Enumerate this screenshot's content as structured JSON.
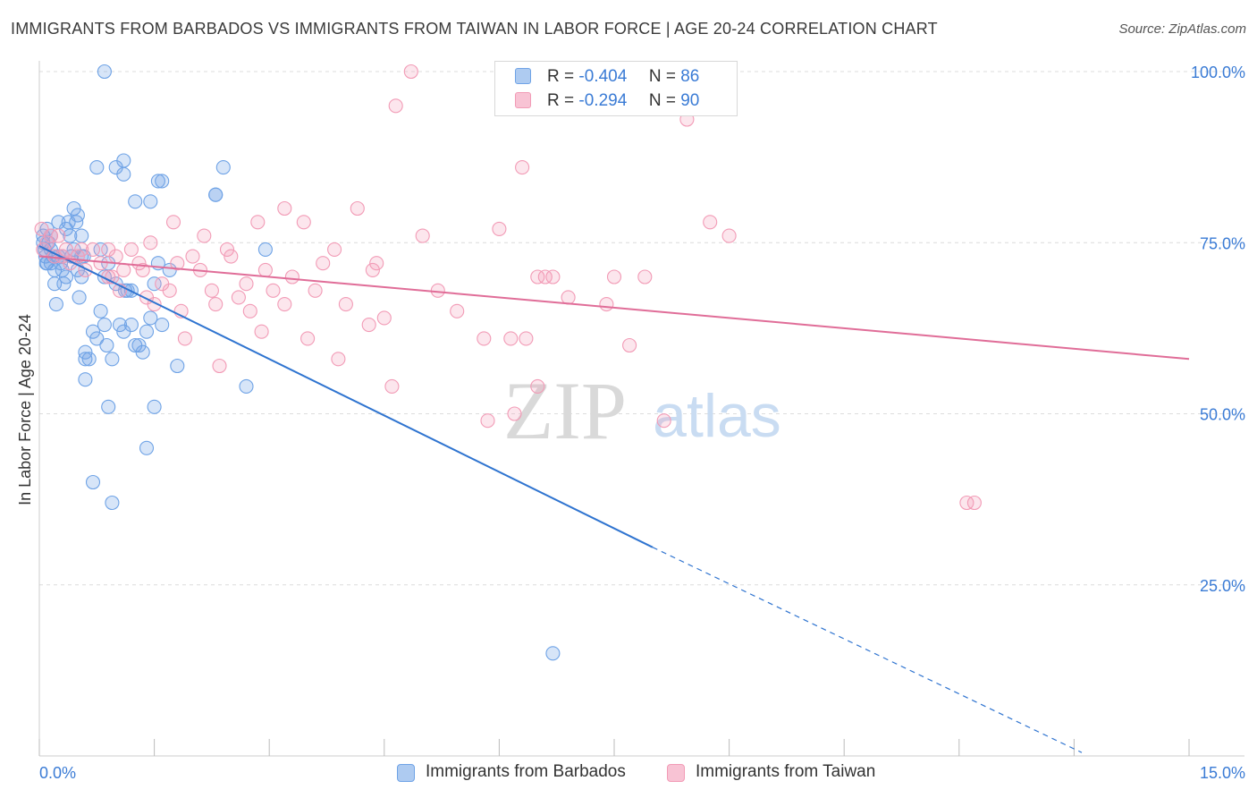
{
  "header": {
    "title": "IMMIGRANTS FROM BARBADOS VS IMMIGRANTS FROM TAIWAN IN LABOR FORCE | AGE 20-24 CORRELATION CHART",
    "source": "Source: ZipAtlas.com"
  },
  "watermark": {
    "zip": "ZIP",
    "atlas": "atlas"
  },
  "legend": {
    "r_label": "R =",
    "n_label": "N =",
    "series": [
      {
        "name": "Immigrants from Barbados",
        "r": "-0.404",
        "n": "86"
      },
      {
        "name": "Immigrants from Taiwan",
        "r": "-0.294",
        "n": "90"
      }
    ]
  },
  "chart_data": {
    "type": "scatter",
    "title": "IMMIGRANTS FROM BARBADOS VS IMMIGRANTS FROM TAIWAN IN LABOR FORCE | AGE 20-24 CORRELATION CHART",
    "xlabel": "",
    "ylabel": "In Labor Force | Age 20-24",
    "xlim": [
      0,
      15
    ],
    "ylim": [
      0,
      100
    ],
    "x_tick_labels": [
      "0.0%",
      "15.0%"
    ],
    "y_tick_labels": [
      "100.0%",
      "75.0%",
      "50.0%",
      "25.0%"
    ],
    "y_ticks": [
      100,
      75,
      50,
      25
    ],
    "grid": true,
    "series": [
      {
        "name": "Immigrants from Barbados",
        "color": "#6fa3e6",
        "line_color": "#2f74d0",
        "points": [
          [
            0.05,
            76
          ],
          [
            0.05,
            75
          ],
          [
            0.07,
            74
          ],
          [
            0.08,
            73
          ],
          [
            0.09,
            72
          ],
          [
            0.1,
            77
          ],
          [
            0.12,
            75
          ],
          [
            0.15,
            74
          ],
          [
            0.15,
            72
          ],
          [
            0.18,
            73
          ],
          [
            0.2,
            71
          ],
          [
            0.2,
            69
          ],
          [
            0.22,
            66
          ],
          [
            0.25,
            78
          ],
          [
            0.25,
            73
          ],
          [
            0.28,
            72
          ],
          [
            0.3,
            71
          ],
          [
            0.32,
            69
          ],
          [
            0.35,
            77
          ],
          [
            0.38,
            78
          ],
          [
            0.4,
            76
          ],
          [
            0.42,
            73
          ],
          [
            0.45,
            80
          ],
          [
            0.45,
            74
          ],
          [
            0.48,
            78
          ],
          [
            0.5,
            71
          ],
          [
            0.52,
            67
          ],
          [
            0.55,
            76
          ],
          [
            0.55,
            70
          ],
          [
            0.58,
            73
          ],
          [
            0.6,
            59
          ],
          [
            0.6,
            58
          ],
          [
            0.65,
            58
          ],
          [
            0.7,
            62
          ],
          [
            0.75,
            61
          ],
          [
            0.8,
            74
          ],
          [
            0.8,
            65
          ],
          [
            0.85,
            63
          ],
          [
            0.88,
            60
          ],
          [
            0.9,
            72
          ],
          [
            0.95,
            58
          ],
          [
            1.0,
            69
          ],
          [
            1.05,
            63
          ],
          [
            1.1,
            62
          ],
          [
            1.12,
            68
          ],
          [
            1.2,
            63
          ],
          [
            1.25,
            60
          ],
          [
            1.3,
            60
          ],
          [
            1.35,
            59
          ],
          [
            1.4,
            62
          ],
          [
            1.45,
            64
          ],
          [
            1.5,
            69
          ],
          [
            1.55,
            72
          ],
          [
            1.6,
            63
          ],
          [
            1.7,
            71
          ],
          [
            1.8,
            57
          ],
          [
            0.1,
            72
          ],
          [
            0.3,
            73
          ],
          [
            0.55,
            73
          ],
          [
            0.85,
            70
          ],
          [
            1.15,
            68
          ],
          [
            1.25,
            81
          ],
          [
            1.45,
            81
          ],
          [
            1.55,
            84
          ],
          [
            1.6,
            84
          ],
          [
            1.1,
            87
          ],
          [
            0.75,
            86
          ],
          [
            1.0,
            86
          ],
          [
            1.1,
            85
          ],
          [
            2.3,
            82
          ],
          [
            2.3,
            82
          ],
          [
            2.4,
            86
          ],
          [
            0.6,
            55
          ],
          [
            0.9,
            51
          ],
          [
            1.5,
            51
          ],
          [
            1.4,
            45
          ],
          [
            0.7,
            40
          ],
          [
            0.95,
            37
          ],
          [
            0.85,
            100
          ],
          [
            2.95,
            74
          ],
          [
            2.7,
            54
          ],
          [
            6.7,
            15
          ],
          [
            0.35,
            70
          ],
          [
            0.15,
            76
          ],
          [
            0.5,
            79
          ],
          [
            1.2,
            68
          ]
        ],
        "trend": {
          "x0": 0,
          "y0": 74.5,
          "x1": 8.0,
          "y1": 30.5,
          "dash_to_x": 13.6,
          "dash_to_y": 0.5
        }
      },
      {
        "name": "Immigrants from Taiwan",
        "color": "#f29bb6",
        "line_color": "#e06d98",
        "points": [
          [
            0.03,
            77
          ],
          [
            0.05,
            74
          ],
          [
            0.1,
            75
          ],
          [
            0.15,
            76
          ],
          [
            0.2,
            73
          ],
          [
            0.25,
            76
          ],
          [
            0.35,
            74
          ],
          [
            0.4,
            72
          ],
          [
            0.5,
            73
          ],
          [
            0.6,
            71
          ],
          [
            0.7,
            74
          ],
          [
            0.8,
            72
          ],
          [
            0.9,
            70
          ],
          [
            0.9,
            74
          ],
          [
            1.0,
            73
          ],
          [
            1.05,
            68
          ],
          [
            1.1,
            71
          ],
          [
            1.2,
            74
          ],
          [
            1.3,
            72
          ],
          [
            1.35,
            71
          ],
          [
            1.4,
            67
          ],
          [
            1.5,
            66
          ],
          [
            1.6,
            69
          ],
          [
            1.7,
            68
          ],
          [
            1.8,
            72
          ],
          [
            1.85,
            65
          ],
          [
            1.9,
            61
          ],
          [
            2.0,
            73
          ],
          [
            2.1,
            71
          ],
          [
            2.25,
            68
          ],
          [
            2.3,
            66
          ],
          [
            2.35,
            57
          ],
          [
            2.5,
            73
          ],
          [
            2.6,
            67
          ],
          [
            2.7,
            69
          ],
          [
            2.75,
            65
          ],
          [
            2.9,
            62
          ],
          [
            2.95,
            71
          ],
          [
            3.05,
            68
          ],
          [
            3.2,
            66
          ],
          [
            3.3,
            70
          ],
          [
            3.45,
            78
          ],
          [
            3.5,
            61
          ],
          [
            3.6,
            68
          ],
          [
            3.7,
            72
          ],
          [
            3.85,
            74
          ],
          [
            3.9,
            58
          ],
          [
            4.0,
            66
          ],
          [
            4.15,
            80
          ],
          [
            4.35,
            71
          ],
          [
            4.4,
            72
          ],
          [
            4.5,
            64
          ],
          [
            4.6,
            54
          ],
          [
            4.65,
            95
          ],
          [
            4.85,
            100
          ],
          [
            5.0,
            76
          ],
          [
            5.2,
            68
          ],
          [
            5.45,
            65
          ],
          [
            5.8,
            61
          ],
          [
            6.0,
            77
          ],
          [
            6.15,
            61
          ],
          [
            6.3,
            86
          ],
          [
            6.35,
            61
          ],
          [
            6.5,
            70
          ],
          [
            6.5,
            54
          ],
          [
            6.6,
            70
          ],
          [
            6.9,
            67
          ],
          [
            7.4,
            66
          ],
          [
            7.5,
            70
          ],
          [
            7.7,
            60
          ],
          [
            7.9,
            70
          ],
          [
            8.45,
            93
          ],
          [
            8.15,
            49
          ],
          [
            8.75,
            78
          ],
          [
            9.0,
            76
          ],
          [
            12.1,
            37
          ],
          [
            12.2,
            37
          ],
          [
            2.85,
            78
          ],
          [
            3.2,
            80
          ],
          [
            1.75,
            78
          ],
          [
            2.15,
            76
          ],
          [
            2.45,
            74
          ],
          [
            0.95,
            70
          ],
          [
            0.55,
            74
          ],
          [
            1.45,
            75
          ],
          [
            0.3,
            73
          ],
          [
            6.7,
            70
          ],
          [
            5.85,
            49
          ],
          [
            6.2,
            50
          ],
          [
            4.3,
            63
          ]
        ],
        "trend": {
          "x0": 0,
          "y0": 73.0,
          "x1": 15,
          "y1": 58.0
        }
      }
    ]
  }
}
